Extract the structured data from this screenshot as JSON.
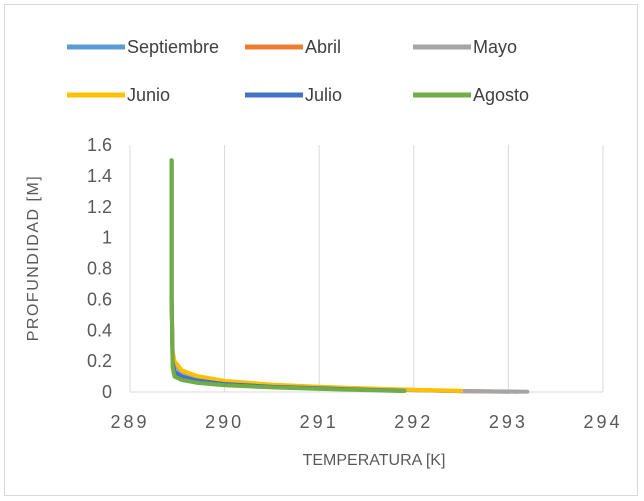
{
  "chart_data": {
    "type": "line",
    "xlabel": "TEMPERATURA [K]",
    "ylabel": "PROFUNDIDAD [M]",
    "xlim": [
      289,
      294
    ],
    "ylim": [
      0,
      1.6
    ],
    "x_ticks": [
      289,
      290,
      291,
      292,
      293,
      294
    ],
    "y_ticks": [
      0,
      0.2,
      0.4,
      0.6,
      0.8,
      1,
      1.2,
      1.4,
      1.6
    ],
    "y_tick_labels": [
      "0",
      "0.2",
      "0.4",
      "0.6",
      "0.8",
      "1",
      "1.2",
      "1.4",
      "1.6"
    ],
    "grid": "vertical",
    "legend": "top",
    "series": [
      {
        "name": "Septiembre",
        "color": "#5b9bd5",
        "points": [
          [
            289.44,
            1.5
          ],
          [
            289.44,
            0.6
          ],
          [
            289.45,
            0.25
          ],
          [
            289.47,
            0.17
          ],
          [
            289.55,
            0.12
          ],
          [
            289.7,
            0.09
          ],
          [
            290.0,
            0.06
          ],
          [
            290.5,
            0.04
          ],
          [
            291.0,
            0.03
          ],
          [
            291.5,
            0.02
          ],
          [
            292.0,
            0.012
          ],
          [
            292.5,
            0.006
          ],
          [
            293.0,
            0.002
          ]
        ]
      },
      {
        "name": "Abril",
        "color": "#ed7d31",
        "points": [
          [
            289.44,
            1.5
          ],
          [
            289.44,
            0.6
          ],
          [
            289.45,
            0.25
          ],
          [
            289.47,
            0.18
          ],
          [
            289.55,
            0.13
          ],
          [
            289.7,
            0.1
          ],
          [
            290.0,
            0.07
          ],
          [
            290.5,
            0.045
          ],
          [
            291.0,
            0.032
          ],
          [
            291.5,
            0.022
          ],
          [
            292.0,
            0.013
          ],
          [
            292.5,
            0.006
          ],
          [
            293.1,
            0.002
          ]
        ]
      },
      {
        "name": "Mayo",
        "color": "#a5a5a5",
        "points": [
          [
            289.44,
            1.5
          ],
          [
            289.44,
            0.6
          ],
          [
            289.45,
            0.24
          ],
          [
            289.47,
            0.17
          ],
          [
            289.55,
            0.12
          ],
          [
            289.7,
            0.09
          ],
          [
            290.0,
            0.065
          ],
          [
            290.5,
            0.042
          ],
          [
            291.0,
            0.03
          ],
          [
            291.5,
            0.02
          ],
          [
            292.0,
            0.012
          ],
          [
            292.5,
            0.006
          ],
          [
            293.2,
            0.002
          ]
        ]
      },
      {
        "name": "Junio",
        "color": "#ffc000",
        "points": [
          [
            289.44,
            1.5
          ],
          [
            289.44,
            0.6
          ],
          [
            289.45,
            0.27
          ],
          [
            289.47,
            0.2
          ],
          [
            289.55,
            0.14
          ],
          [
            289.7,
            0.105
          ],
          [
            290.0,
            0.072
          ],
          [
            290.5,
            0.048
          ],
          [
            291.0,
            0.034
          ],
          [
            291.5,
            0.023
          ],
          [
            292.0,
            0.014
          ],
          [
            292.5,
            0.008
          ]
        ]
      },
      {
        "name": "Julio",
        "color": "#4472c4",
        "points": [
          [
            289.44,
            1.5
          ],
          [
            289.44,
            0.6
          ],
          [
            289.45,
            0.2
          ],
          [
            289.47,
            0.13
          ],
          [
            289.55,
            0.1
          ],
          [
            289.7,
            0.075
          ],
          [
            290.0,
            0.052
          ],
          [
            290.5,
            0.034
          ],
          [
            291.0,
            0.024
          ],
          [
            291.5,
            0.015
          ],
          [
            291.9,
            0.008
          ]
        ]
      },
      {
        "name": "Agosto",
        "color": "#70ad47",
        "points": [
          [
            289.44,
            1.5
          ],
          [
            289.44,
            0.6
          ],
          [
            289.45,
            0.16
          ],
          [
            289.47,
            0.1
          ],
          [
            289.55,
            0.078
          ],
          [
            289.7,
            0.06
          ],
          [
            290.0,
            0.044
          ],
          [
            290.5,
            0.03
          ],
          [
            291.0,
            0.02
          ],
          [
            291.5,
            0.012
          ],
          [
            291.9,
            0.006
          ]
        ]
      }
    ]
  }
}
